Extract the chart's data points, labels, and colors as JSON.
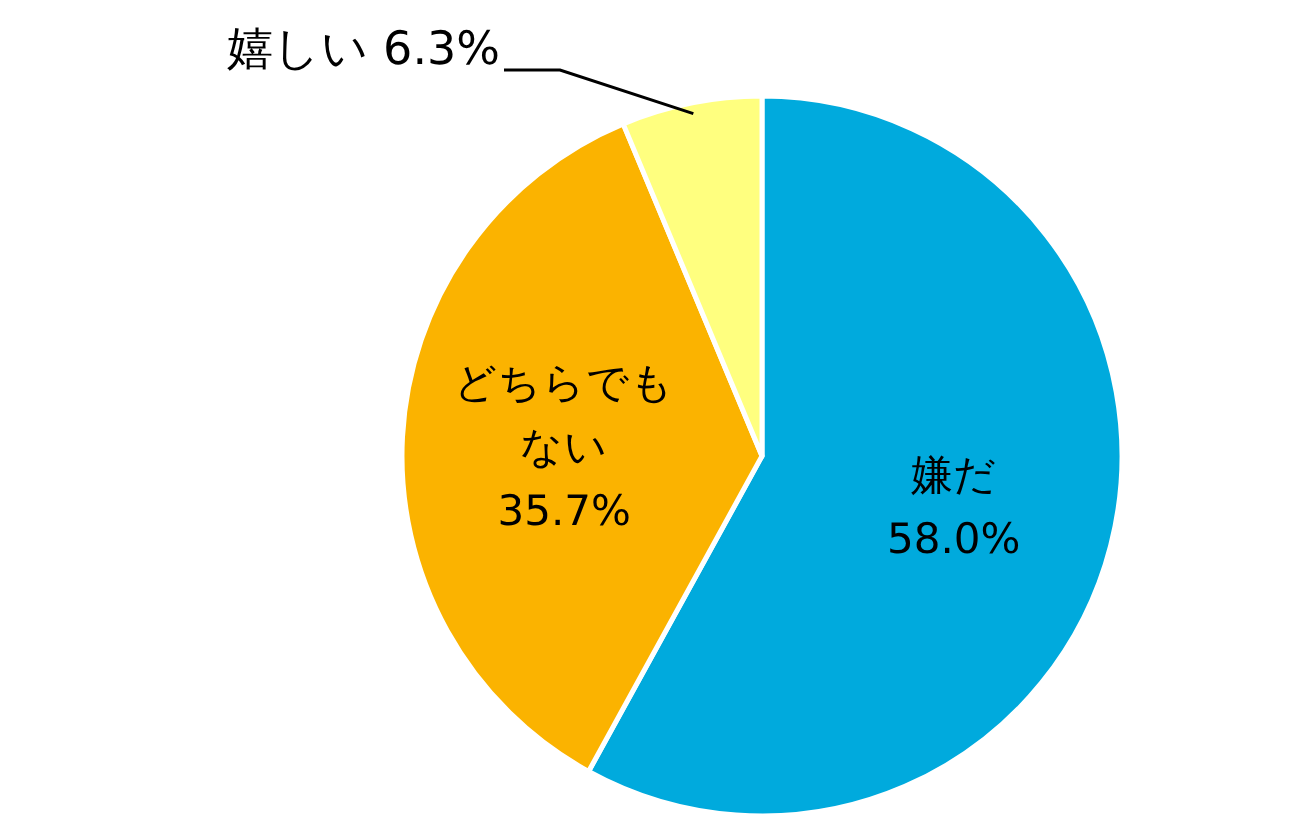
{
  "chart_data": {
    "type": "pie",
    "categories": [
      "嫌だ",
      "どちらでもない",
      "嬉しい"
    ],
    "values": [
      58.0,
      35.7,
      6.3
    ],
    "colors": [
      "#00aadd",
      "#fbb300",
      "#ffff7f"
    ],
    "value_labels": [
      "58.0%",
      "35.7%",
      "6.3%"
    ]
  }
}
